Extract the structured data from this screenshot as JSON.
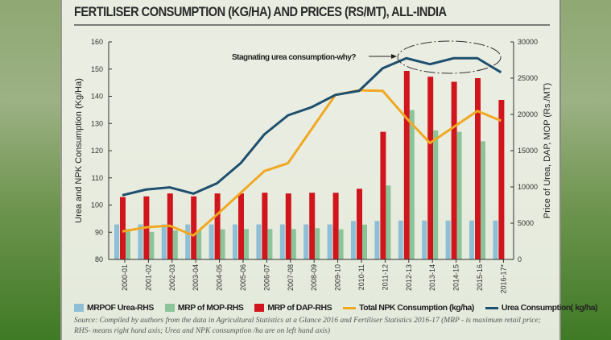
{
  "title": "FERTILISER CONSUMPTION (KG/HA) AND PRICES (RS/MT), ALL-INDIA",
  "chart_data": {
    "type": "bar+line",
    "categories": [
      "2000-01",
      "2001-02",
      "2002-03",
      "2003-04",
      "2004-05",
      "2005-06",
      "2006-07",
      "2007-08",
      "2008-09",
      "2009-10",
      "2010-11",
      "2011-12",
      "2012-13",
      "2013-14",
      "2014-15",
      "2015-16",
      "2016-17*"
    ],
    "ylabel_left": "Urea and NPK Consumption (Kg/Ha)",
    "ylabel_right": "Price of Urea, DAP, MOP (Rs./MT)",
    "ylim_left": [
      80,
      160
    ],
    "yticks_left": [
      "80",
      "90",
      "100",
      "110",
      "120",
      "130",
      "140",
      "150",
      "160"
    ],
    "ylim_right": [
      0,
      30000
    ],
    "yticks_right": [
      "0",
      "5000",
      "10000",
      "15000",
      "20000",
      "25000",
      "30000"
    ],
    "bar_series": [
      {
        "name": "MRPOF Urea-RHS",
        "axis": "right",
        "color": "#8fbfd6",
        "values": [
          4830,
          4830,
          4830,
          4830,
          4830,
          4830,
          4830,
          4830,
          4830,
          4830,
          5310,
          5310,
          5360,
          5360,
          5360,
          5360,
          5360
        ]
      },
      {
        "name": "MRP of DAP-RHS",
        "axis": "right",
        "color": "#d0161c",
        "values": [
          8600,
          8700,
          9100,
          8700,
          9100,
          9100,
          9200,
          9100,
          9200,
          9200,
          9750,
          17600,
          26000,
          25200,
          24500,
          25000,
          22000
        ]
      },
      {
        "name": "MRP of MOP-RHS",
        "axis": "right",
        "color": "#8cc49a",
        "values": [
          4200,
          3800,
          4000,
          4000,
          4150,
          4200,
          4200,
          4200,
          4300,
          4150,
          4800,
          10200,
          20600,
          17800,
          17600,
          16300,
          null
        ]
      }
    ],
    "line_series": [
      {
        "name": "Total NPK Consumption (kg/ha)",
        "axis": "left",
        "color": "#f0a822",
        "values": [
          90.3,
          91.8,
          92.4,
          88.8,
          96.5,
          104.5,
          112.5,
          115.4,
          128,
          140.5,
          142.2,
          142,
          132,
          122.8,
          128.7,
          134.6,
          131
        ]
      },
      {
        "name": "Urea Consumption( kg/ha)",
        "axis": "left",
        "color": "#1d4f6e",
        "values": [
          103.6,
          105.7,
          106.5,
          104.2,
          108,
          115.4,
          126,
          133,
          136,
          140.5,
          142,
          150.3,
          154,
          151.8,
          154,
          154,
          148.8
        ]
      }
    ],
    "annotation": "Stagnating urea consumption-why?",
    "grid": false,
    "legend_position": "bottom"
  },
  "legend": [
    {
      "label": "MRPOF Urea-RHS",
      "color": "#8fbfd6",
      "kind": "box"
    },
    {
      "label": "MRP of MOP-RHS",
      "color": "#8cc49a",
      "kind": "box"
    },
    {
      "label": "MRP of DAP-RHS",
      "color": "#d0161c",
      "kind": "box"
    },
    {
      "label": "Total NPK Consumption (kg/ha)",
      "color": "#f0a822",
      "kind": "line"
    },
    {
      "label": "Urea Consumption( kg/ha)",
      "color": "#1d4f6e",
      "kind": "line"
    }
  ],
  "source": "Source: Compiled by authors from the data in Agricultural Statistics at a Glance 2016 and Fertiliser Statistics 2016-17 (MRP - is maximum retail price; RHS- means right hand axis; Urea and NPK consumption /ha are on left hand axis)"
}
